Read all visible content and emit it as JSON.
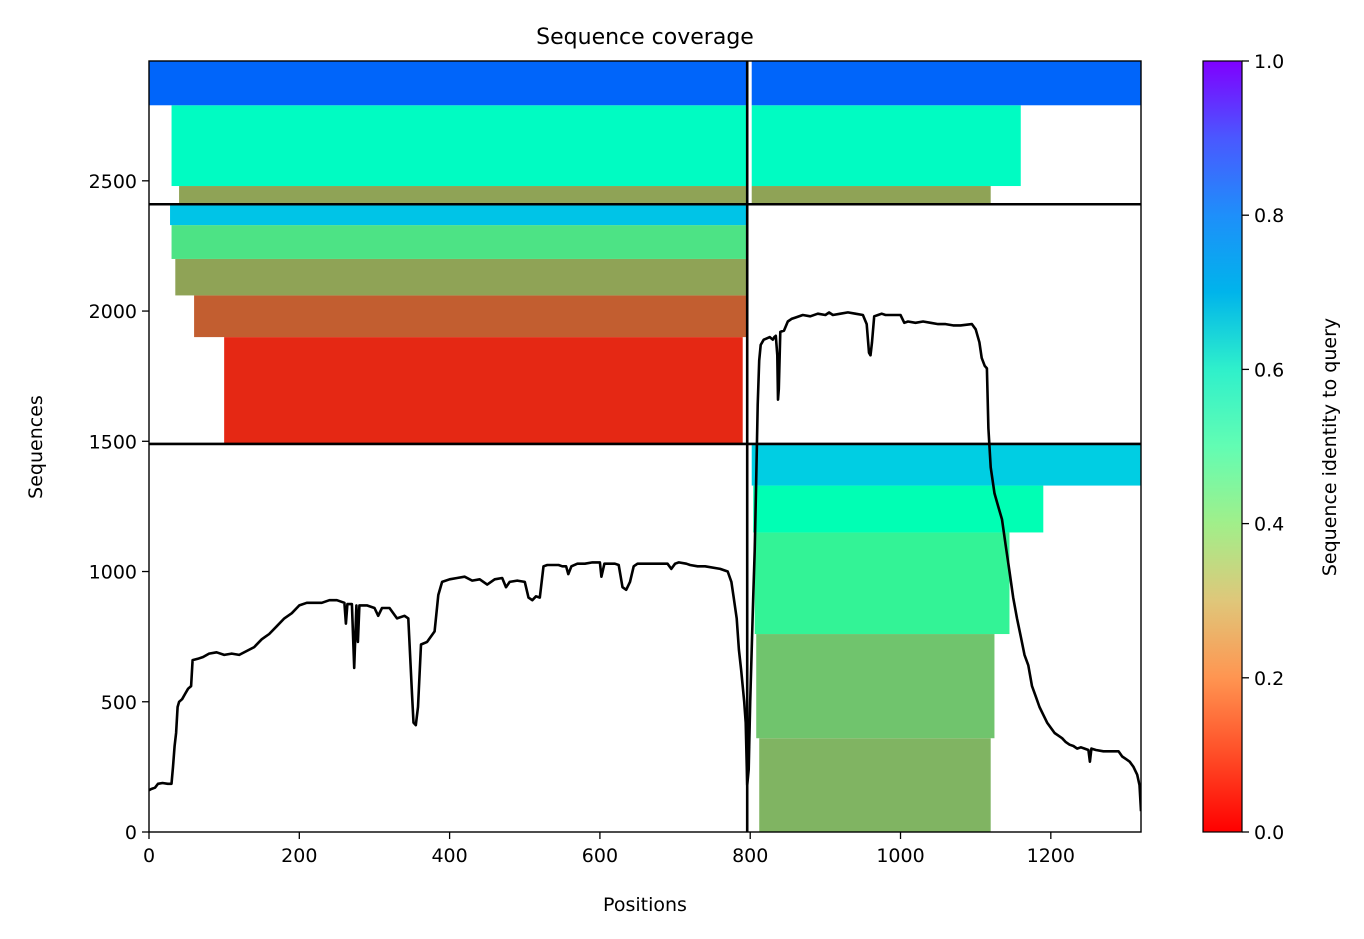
{
  "chart_data": {
    "type": "heatmap",
    "title": "Sequence coverage",
    "xlabel": "Positions",
    "ylabel": "Sequences",
    "xlim": [
      0,
      1320
    ],
    "ylim": [
      0,
      2960
    ],
    "xticks": [
      "0",
      "200",
      "400",
      "600",
      "800",
      "1000",
      "1200"
    ],
    "xtick_values": [
      0,
      200,
      400,
      600,
      800,
      1000,
      1200
    ],
    "yticks": [
      "0",
      "500",
      "1000",
      "1500",
      "2000",
      "2500"
    ],
    "ytick_values": [
      0,
      500,
      1000,
      1500,
      2000,
      2500
    ],
    "colorbar": {
      "label": "Sequence identity to query",
      "colormap": "rainbow_r",
      "range": [
        0,
        1
      ],
      "ticks": [
        "0.0",
        "0.2",
        "0.4",
        "0.6",
        "0.8",
        "1.0"
      ],
      "tick_values": [
        0,
        0.2,
        0.4,
        0.6,
        0.8,
        1.0
      ]
    },
    "chain_boundary_positions": [
      796
    ],
    "block_boundary_sequences": [
      1490,
      2410
    ],
    "blocks": [
      {
        "x_range": [
          800,
          1320
        ],
        "y_range": [
          0,
          1490
        ],
        "identity_bands": [
          {
            "y": [
              0,
              360
            ],
            "x": [
              812,
              1120
            ],
            "identity": 0.25
          },
          {
            "y": [
              360,
              760
            ],
            "x": [
              808,
              1125
            ],
            "identity": 0.28
          },
          {
            "y": [
              760,
              1150
            ],
            "x": [
              806,
              1145
            ],
            "identity": 0.4
          },
          {
            "y": [
              1150,
              1330
            ],
            "x": [
              804,
              1190
            ],
            "identity": 0.5
          },
          {
            "y": [
              1330,
              1490
            ],
            "x": [
              802,
              1320
            ],
            "identity": 0.7
          }
        ]
      },
      {
        "x_range": [
          0,
          796
        ],
        "y_range": [
          1490,
          2410
        ],
        "identity_bands": [
          {
            "y": [
              1490,
              1900
            ],
            "x": [
              100,
              790
            ],
            "identity": 0.05
          },
          {
            "y": [
              1900,
              2060
            ],
            "x": [
              60,
              796
            ],
            "identity": 0.12
          },
          {
            "y": [
              2060,
              2200
            ],
            "x": [
              35,
              796
            ],
            "identity": 0.22
          },
          {
            "y": [
              2200,
              2330
            ],
            "x": [
              30,
              796
            ],
            "identity": 0.35
          },
          {
            "y": [
              2330,
              2410
            ],
            "x": [
              28,
              796
            ],
            "identity": 0.72
          }
        ]
      },
      {
        "x_range": [
          0,
          796
        ],
        "y_range": [
          2410,
          2960
        ],
        "identity_bands": [
          {
            "y": [
              2410,
              2480
            ],
            "x": [
              40,
              796
            ],
            "identity": 0.22
          },
          {
            "y": [
              2480,
              2790
            ],
            "x": [
              30,
              796
            ],
            "identity": 0.55
          },
          {
            "y": [
              2790,
              2960
            ],
            "x": [
              0,
              796
            ],
            "identity": 0.87
          }
        ]
      },
      {
        "x_range": [
          800,
          1320
        ],
        "y_range": [
          2410,
          2960
        ],
        "identity_bands": [
          {
            "y": [
              2410,
              2480
            ],
            "x": [
              802,
              1120
            ],
            "identity": 0.22
          },
          {
            "y": [
              2480,
              2790
            ],
            "x": [
              802,
              1160
            ],
            "identity": 0.55
          },
          {
            "y": [
              2790,
              2960
            ],
            "x": [
              802,
              1320
            ],
            "identity": 0.87
          }
        ]
      }
    ],
    "coverage_line": {
      "name": "coverage",
      "color": "#000000",
      "points": [
        [
          0,
          160
        ],
        [
          3,
          165
        ],
        [
          8,
          170
        ],
        [
          12,
          185
        ],
        [
          18,
          188
        ],
        [
          25,
          185
        ],
        [
          30,
          185
        ],
        [
          32,
          250
        ],
        [
          34,
          330
        ],
        [
          36,
          380
        ],
        [
          38,
          480
        ],
        [
          40,
          500
        ],
        [
          44,
          510
        ],
        [
          48,
          530
        ],
        [
          52,
          550
        ],
        [
          56,
          560
        ],
        [
          58,
          660
        ],
        [
          65,
          665
        ],
        [
          72,
          672
        ],
        [
          80,
          685
        ],
        [
          90,
          690
        ],
        [
          100,
          680
        ],
        [
          110,
          685
        ],
        [
          120,
          680
        ],
        [
          130,
          695
        ],
        [
          140,
          710
        ],
        [
          150,
          740
        ],
        [
          160,
          760
        ],
        [
          170,
          790
        ],
        [
          180,
          820
        ],
        [
          190,
          840
        ],
        [
          200,
          870
        ],
        [
          210,
          880
        ],
        [
          220,
          880
        ],
        [
          230,
          880
        ],
        [
          240,
          890
        ],
        [
          250,
          890
        ],
        [
          260,
          880
        ],
        [
          262,
          800
        ],
        [
          264,
          875
        ],
        [
          270,
          875
        ],
        [
          273,
          630
        ],
        [
          276,
          870
        ],
        [
          278,
          730
        ],
        [
          280,
          870
        ],
        [
          290,
          870
        ],
        [
          300,
          860
        ],
        [
          305,
          830
        ],
        [
          310,
          860
        ],
        [
          320,
          860
        ],
        [
          330,
          820
        ],
        [
          340,
          830
        ],
        [
          345,
          820
        ],
        [
          350,
          530
        ],
        [
          352,
          420
        ],
        [
          355,
          410
        ],
        [
          358,
          480
        ],
        [
          362,
          720
        ],
        [
          370,
          730
        ],
        [
          380,
          770
        ],
        [
          385,
          910
        ],
        [
          390,
          960
        ],
        [
          400,
          970
        ],
        [
          410,
          975
        ],
        [
          420,
          980
        ],
        [
          430,
          965
        ],
        [
          440,
          970
        ],
        [
          450,
          950
        ],
        [
          460,
          970
        ],
        [
          470,
          975
        ],
        [
          475,
          940
        ],
        [
          480,
          960
        ],
        [
          490,
          965
        ],
        [
          500,
          960
        ],
        [
          505,
          900
        ],
        [
          510,
          890
        ],
        [
          515,
          905
        ],
        [
          520,
          900
        ],
        [
          525,
          1020
        ],
        [
          530,
          1025
        ],
        [
          545,
          1025
        ],
        [
          550,
          1020
        ],
        [
          555,
          1020
        ],
        [
          558,
          990
        ],
        [
          562,
          1020
        ],
        [
          570,
          1030
        ],
        [
          580,
          1030
        ],
        [
          590,
          1035
        ],
        [
          600,
          1035
        ],
        [
          602,
          980
        ],
        [
          606,
          1030
        ],
        [
          620,
          1030
        ],
        [
          625,
          1025
        ],
        [
          630,
          940
        ],
        [
          635,
          930
        ],
        [
          640,
          960
        ],
        [
          645,
          1020
        ],
        [
          650,
          1030
        ],
        [
          660,
          1030
        ],
        [
          670,
          1030
        ],
        [
          680,
          1030
        ],
        [
          690,
          1030
        ],
        [
          695,
          1010
        ],
        [
          700,
          1030
        ],
        [
          705,
          1035
        ],
        [
          715,
          1030
        ],
        [
          720,
          1025
        ],
        [
          730,
          1020
        ],
        [
          740,
          1020
        ],
        [
          760,
          1010
        ],
        [
          770,
          1000
        ],
        [
          775,
          960
        ],
        [
          778,
          900
        ],
        [
          782,
          820
        ],
        [
          785,
          700
        ],
        [
          788,
          620
        ],
        [
          790,
          560
        ],
        [
          792,
          500
        ],
        [
          794,
          420
        ],
        [
          796,
          180
        ],
        [
          798,
          240
        ],
        [
          800,
          500
        ],
        [
          802,
          700
        ],
        [
          804,
          900
        ],
        [
          806,
          1080
        ],
        [
          808,
          1350
        ],
        [
          810,
          1640
        ],
        [
          812,
          1810
        ],
        [
          814,
          1870
        ],
        [
          818,
          1890
        ],
        [
          822,
          1895
        ],
        [
          826,
          1900
        ],
        [
          830,
          1890
        ],
        [
          832,
          1900
        ],
        [
          834,
          1905
        ],
        [
          836,
          1830
        ],
        [
          837,
          1660
        ],
        [
          838,
          1700
        ],
        [
          840,
          1920
        ],
        [
          845,
          1925
        ],
        [
          850,
          1960
        ],
        [
          855,
          1970
        ],
        [
          860,
          1975
        ],
        [
          870,
          1985
        ],
        [
          880,
          1980
        ],
        [
          890,
          1990
        ],
        [
          900,
          1985
        ],
        [
          905,
          1995
        ],
        [
          910,
          1985
        ],
        [
          920,
          1990
        ],
        [
          930,
          1995
        ],
        [
          940,
          1990
        ],
        [
          950,
          1985
        ],
        [
          955,
          1950
        ],
        [
          958,
          1840
        ],
        [
          960,
          1830
        ],
        [
          962,
          1880
        ],
        [
          965,
          1980
        ],
        [
          970,
          1985
        ],
        [
          975,
          1990
        ],
        [
          980,
          1985
        ],
        [
          990,
          1985
        ],
        [
          1000,
          1985
        ],
        [
          1005,
          1955
        ],
        [
          1010,
          1960
        ],
        [
          1020,
          1955
        ],
        [
          1030,
          1960
        ],
        [
          1040,
          1955
        ],
        [
          1050,
          1950
        ],
        [
          1060,
          1950
        ],
        [
          1070,
          1945
        ],
        [
          1080,
          1945
        ],
        [
          1095,
          1950
        ],
        [
          1100,
          1930
        ],
        [
          1105,
          1880
        ],
        [
          1108,
          1820
        ],
        [
          1112,
          1790
        ],
        [
          1115,
          1780
        ],
        [
          1117,
          1550
        ],
        [
          1120,
          1400
        ],
        [
          1125,
          1300
        ],
        [
          1130,
          1250
        ],
        [
          1135,
          1200
        ],
        [
          1140,
          1100
        ],
        [
          1145,
          1000
        ],
        [
          1150,
          900
        ],
        [
          1155,
          820
        ],
        [
          1160,
          750
        ],
        [
          1165,
          680
        ],
        [
          1170,
          640
        ],
        [
          1175,
          560
        ],
        [
          1180,
          520
        ],
        [
          1185,
          480
        ],
        [
          1190,
          450
        ],
        [
          1195,
          420
        ],
        [
          1200,
          400
        ],
        [
          1205,
          380
        ],
        [
          1210,
          370
        ],
        [
          1215,
          360
        ],
        [
          1220,
          345
        ],
        [
          1225,
          335
        ],
        [
          1230,
          330
        ],
        [
          1235,
          320
        ],
        [
          1240,
          325
        ],
        [
          1245,
          320
        ],
        [
          1250,
          315
        ],
        [
          1252,
          270
        ],
        [
          1254,
          320
        ],
        [
          1260,
          315
        ],
        [
          1270,
          310
        ],
        [
          1280,
          310
        ],
        [
          1290,
          310
        ],
        [
          1295,
          290
        ],
        [
          1300,
          280
        ],
        [
          1305,
          270
        ],
        [
          1310,
          250
        ],
        [
          1315,
          220
        ],
        [
          1318,
          180
        ],
        [
          1320,
          80
        ]
      ]
    }
  }
}
